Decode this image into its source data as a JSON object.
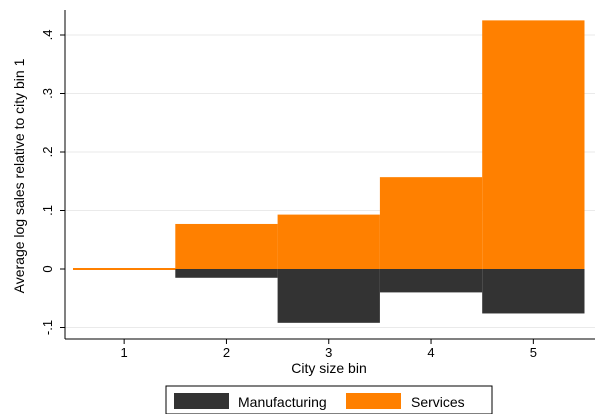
{
  "chart_data": {
    "type": "bar",
    "categories": [
      "1",
      "2",
      "3",
      "4",
      "5"
    ],
    "xlabel": "City size bin",
    "ylabel": "Average log sales relative to city bin 1",
    "ylim": [
      -0.1,
      0.43
    ],
    "yticks": [
      -0.1,
      0,
      0.1,
      0.2,
      0.3,
      0.4
    ],
    "ytick_labels": [
      "-.1",
      "0",
      ".1",
      ".2",
      ".3",
      ".4"
    ],
    "grid": true,
    "legend_position": "bottom",
    "series": [
      {
        "name": "Manufacturing",
        "color": "#333333",
        "values": [
          0,
          -0.015,
          -0.092,
          -0.04,
          -0.076
        ]
      },
      {
        "name": "Services",
        "color": "#ff8000",
        "values": [
          0,
          0.077,
          0.093,
          0.157,
          0.425
        ]
      }
    ]
  }
}
